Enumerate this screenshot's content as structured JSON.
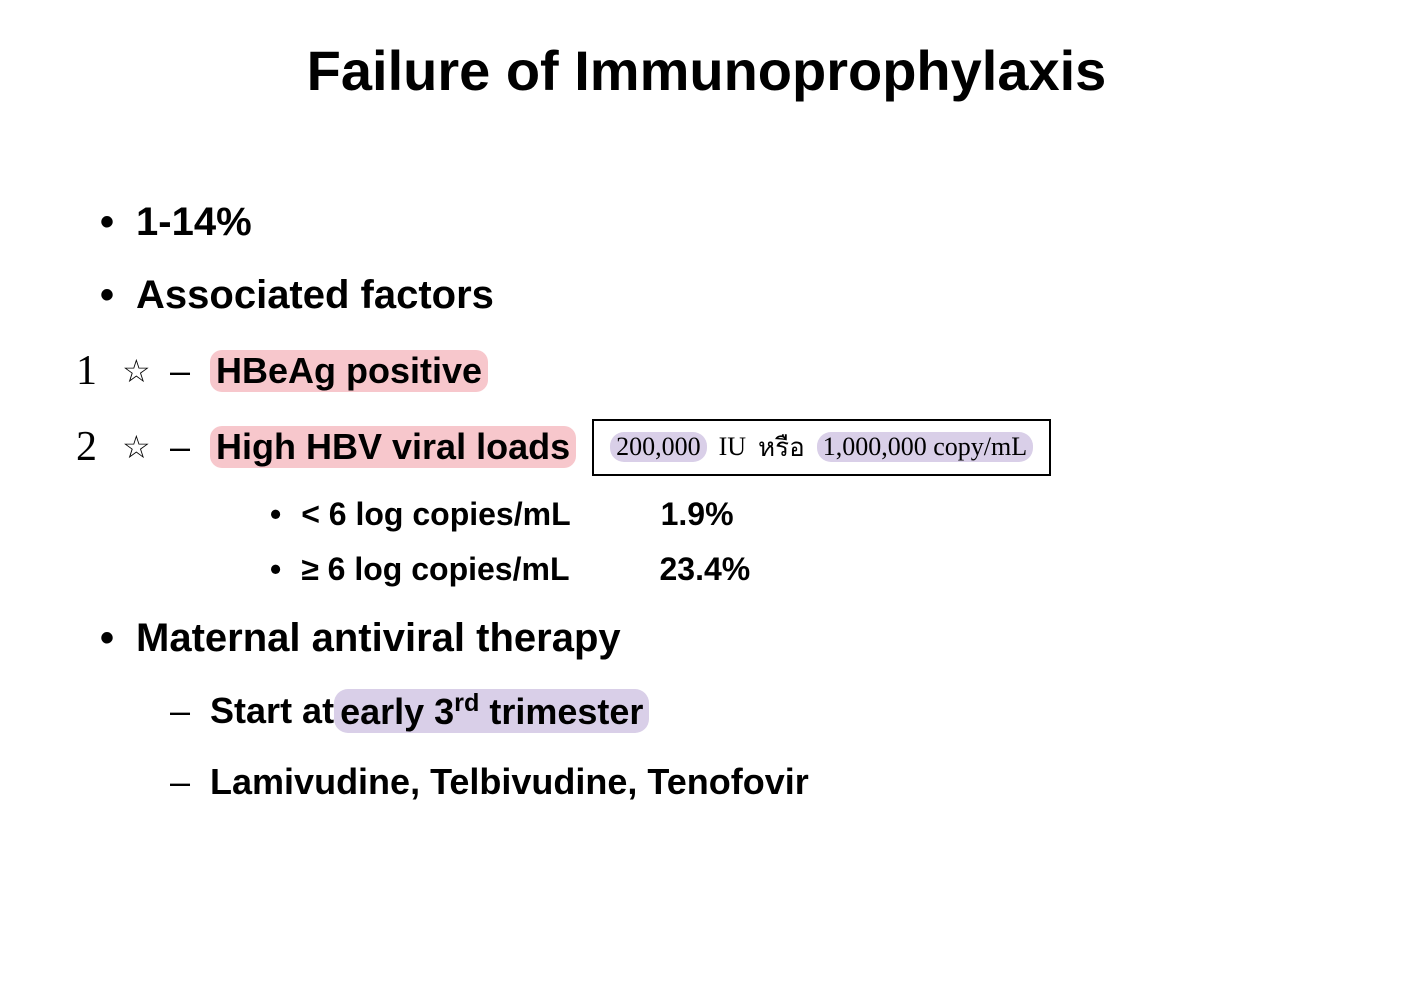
{
  "title": "Failure of Immunoprophylaxis",
  "items": {
    "rate": "1-14%",
    "associated": "Associated factors",
    "factor1": {
      "num": "1",
      "star": "☆",
      "text": "HBeAg positive"
    },
    "factor2": {
      "num": "2",
      "star": "☆",
      "text": "High HBV viral loads",
      "annotation": {
        "part1": "200,000",
        "part2": "IU",
        "part3": "หรือ",
        "part4": "1,000,000 copy/mL"
      }
    },
    "viral1": {
      "label": "< 6 log copies/mL",
      "value": "1.9%"
    },
    "viral2": {
      "label": "≥ 6 log copies/mL",
      "value": "23.4%"
    },
    "therapy": "Maternal antiviral therapy",
    "therapy_sub1_pre": "Start at ",
    "therapy_sub1_hl_pre": "early 3",
    "therapy_sub1_hl_sup": "rd",
    "therapy_sub1_hl_post": " trimester",
    "therapy_sub2": "Lamivudine, Telbivudine, Tenofovir"
  },
  "colors": {
    "background": "#ffffff",
    "text": "#000000",
    "highlight_pink": "#f7c7cc",
    "highlight_purple": "#d9cfe8",
    "border": "#000000"
  },
  "typography": {
    "title_size": 56,
    "l1_size": 40,
    "l2_size": 36,
    "l3_size": 32,
    "annotation_num_size": 42,
    "boxed_note_size": 26
  }
}
